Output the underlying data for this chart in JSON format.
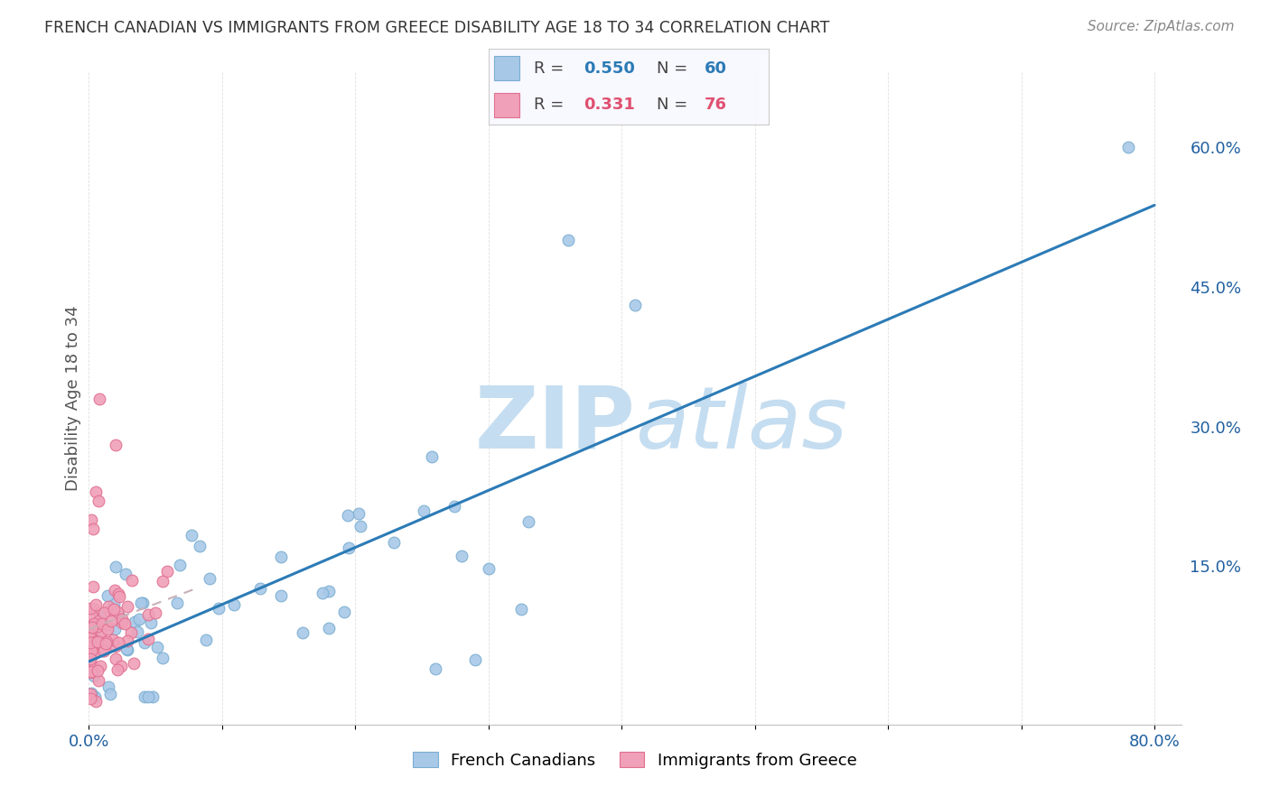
{
  "title": "FRENCH CANADIAN VS IMMIGRANTS FROM GREECE DISABILITY AGE 18 TO 34 CORRELATION CHART",
  "source": "Source: ZipAtlas.com",
  "ylabel": "Disability Age 18 to 34",
  "xlim": [
    0.0,
    0.82
  ],
  "ylim": [
    -0.02,
    0.68
  ],
  "blue_color": "#a8c8e8",
  "blue_edge_color": "#7aaed0",
  "pink_color": "#f0a0b8",
  "pink_edge_color": "#e07090",
  "blue_line_color": "#2c7bb6",
  "pink_line_color": "#d0b0b8",
  "watermark": "ZIPatlas",
  "watermark_color": "#cce0f0",
  "background_color": "#ffffff",
  "legend_border_color": "#cccccc",
  "legend_bg_color": "#f8f8ff",
  "blue_r": "0.550",
  "blue_n": "60",
  "pink_r": "0.331",
  "pink_n": "76",
  "blue_r_color": "#2c7bb6",
  "pink_r_color": "#e05070",
  "label_color": "#2060a0",
  "title_color": "#333333",
  "source_color": "#888888",
  "ylabel_color": "#555555"
}
